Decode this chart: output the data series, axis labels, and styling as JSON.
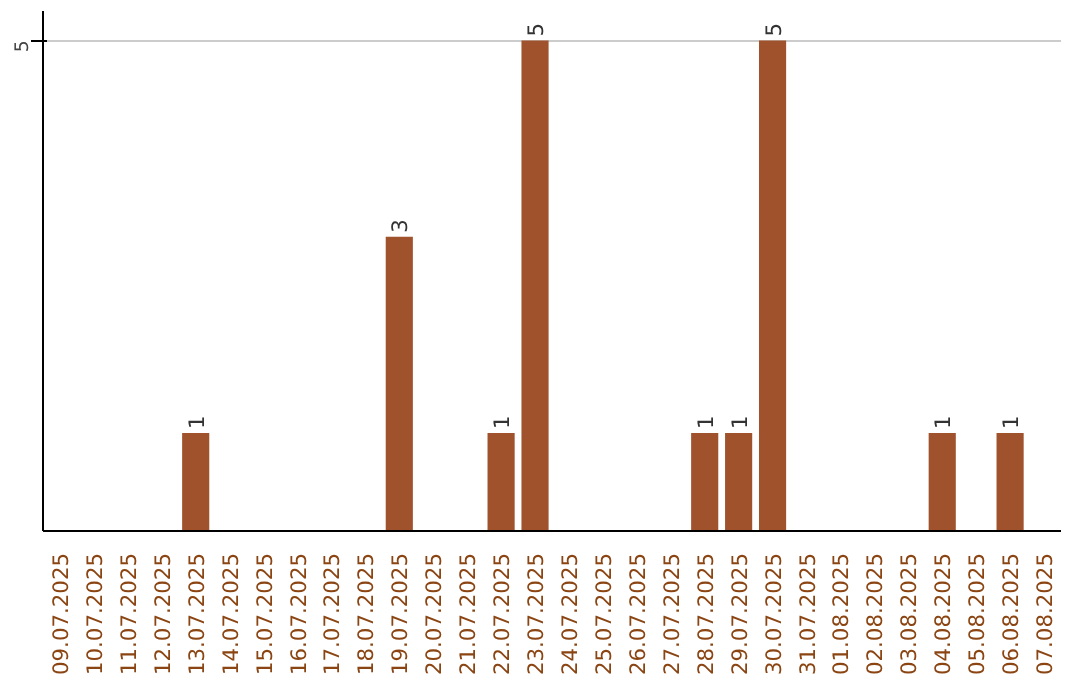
{
  "chart_data": {
    "type": "bar",
    "categories": [
      "09.07.2025",
      "10.07.2025",
      "11.07.2025",
      "12.07.2025",
      "13.07.2025",
      "14.07.2025",
      "15.07.2025",
      "16.07.2025",
      "17.07.2025",
      "18.07.2025",
      "19.07.2025",
      "20.07.2025",
      "21.07.2025",
      "22.07.2025",
      "23.07.2025",
      "24.07.2025",
      "25.07.2025",
      "26.07.2025",
      "27.07.2025",
      "28.07.2025",
      "29.07.2025",
      "30.07.2025",
      "31.07.2025",
      "01.08.2025",
      "02.08.2025",
      "03.08.2025",
      "04.08.2025",
      "05.08.2025",
      "06.08.2025",
      "07.08.2025"
    ],
    "values": [
      0,
      0,
      0,
      0,
      1,
      0,
      0,
      0,
      0,
      0,
      3,
      0,
      0,
      1,
      5,
      0,
      0,
      0,
      0,
      1,
      1,
      5,
      0,
      0,
      0,
      0,
      1,
      0,
      1,
      0
    ],
    "value_labels": [
      null,
      null,
      null,
      null,
      "1",
      null,
      null,
      null,
      null,
      null,
      "3",
      null,
      null,
      "1",
      "5",
      null,
      null,
      null,
      null,
      "1",
      "1",
      "5",
      null,
      null,
      null,
      null,
      "1",
      null,
      "1",
      null
    ],
    "color": "#a0522d",
    "ylim": [
      0,
      5.3
    ],
    "yticks": [
      5
    ],
    "grid": "y"
  }
}
